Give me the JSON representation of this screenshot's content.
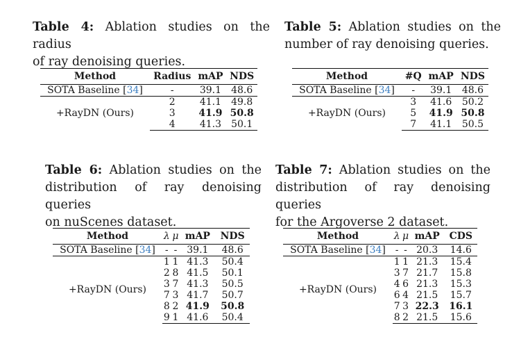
{
  "t4": {
    "label": "Table 4:",
    "caption_l1": " Ablation studies on the radius",
    "caption_l2": "of ray denoising queries.",
    "headers": [
      "Method",
      "Radius",
      "mAP",
      "NDS"
    ],
    "baseline": {
      "name": "SOTA Baseline [",
      "cite": "34",
      "close": "]",
      "v": [
        "-",
        "39.1",
        "48.6"
      ]
    },
    "ours": "+RayDN (Ours)",
    "rows": [
      [
        "2",
        "41.1",
        "49.8"
      ],
      [
        "3",
        "41.9",
        "50.8"
      ],
      [
        "4",
        "41.3",
        "50.1"
      ]
    ]
  },
  "t5": {
    "label": "Table 5:",
    "caption_l1": " Ablation studies on the",
    "caption_l2": "number of ray denoising queries.",
    "headers": [
      "Method",
      "#Q",
      "mAP",
      "NDS"
    ],
    "baseline": {
      "name": "SOTA Baseline [",
      "cite": "34",
      "close": "]",
      "v": [
        "-",
        "39.1",
        "48.6"
      ]
    },
    "ours": "+RayDN (Ours)",
    "rows": [
      [
        "3",
        "41.6",
        "50.2"
      ],
      [
        "5",
        "41.9",
        "50.8"
      ],
      [
        "7",
        "41.1",
        "50.5"
      ]
    ]
  },
  "t6": {
    "label": "Table 6:",
    "caption_l1": " Ablation studies on the",
    "caption_l2": "distribution of ray denoising queries",
    "caption_l3": "on nuScenes dataset.",
    "headers": [
      "Method",
      "λ",
      "μ",
      "mAP",
      "NDS"
    ],
    "baseline": {
      "name": "SOTA Baseline [",
      "cite": "34",
      "close": "]",
      "v": [
        "-",
        "-",
        "39.1",
        "48.6"
      ]
    },
    "ours": "+RayDN (Ours)",
    "rows": [
      [
        "1",
        "1",
        "41.3",
        "50.4"
      ],
      [
        "2",
        "8",
        "41.5",
        "50.1"
      ],
      [
        "3",
        "7",
        "41.3",
        "50.5"
      ],
      [
        "7",
        "3",
        "41.7",
        "50.7"
      ],
      [
        "8",
        "2",
        "41.9",
        "50.8"
      ],
      [
        "9",
        "1",
        "41.6",
        "50.4"
      ]
    ]
  },
  "t7": {
    "label": "Table 7:",
    "caption_l1": " Ablation studies on the",
    "caption_l2": "distribution of ray denoising queries",
    "caption_l3": "for the Argoverse 2 dataset.",
    "headers": [
      "Method",
      "λ",
      "μ",
      "mAP",
      "CDS"
    ],
    "baseline": {
      "name": "SOTA Baseline [",
      "cite": "34",
      "close": "]",
      "v": [
        "-",
        "-",
        "20.3",
        "14.6"
      ]
    },
    "ours": "+RayDN (Ours)",
    "rows": [
      [
        "1",
        "1",
        "21.3",
        "15.4"
      ],
      [
        "3",
        "7",
        "21.7",
        "15.8"
      ],
      [
        "4",
        "6",
        "21.3",
        "15.3"
      ],
      [
        "6",
        "4",
        "21.5",
        "15.7"
      ],
      [
        "7",
        "3",
        "22.3",
        "16.1"
      ],
      [
        "8",
        "2",
        "21.5",
        "15.6"
      ]
    ]
  }
}
